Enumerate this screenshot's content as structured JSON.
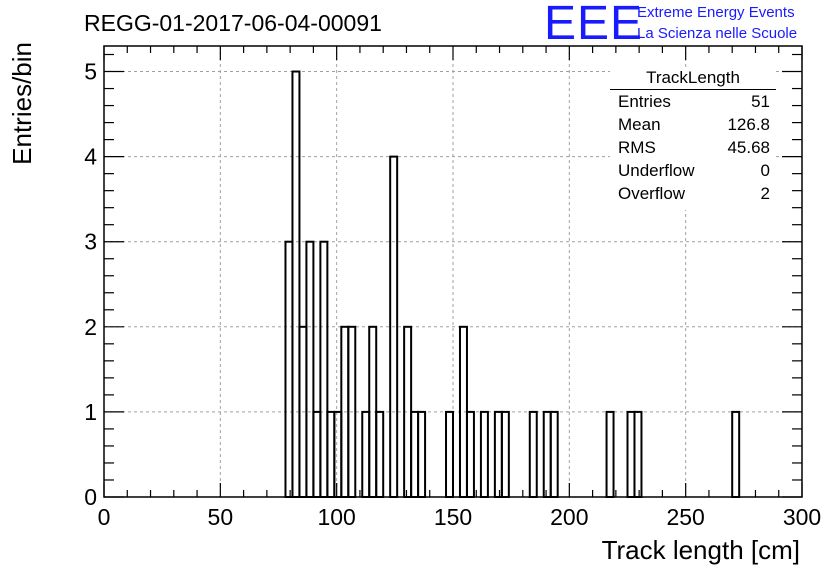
{
  "header": {
    "run_title": "REGG-01-2017-06-04-00091",
    "logo_text": "EEE",
    "logo_line1": "Extreme Energy Events",
    "logo_line2": "La Scienza nelle Scuole",
    "logo_color": "#1a1aff"
  },
  "stats": {
    "title": "TrackLength",
    "rows": [
      {
        "label": "Entries",
        "value": "51"
      },
      {
        "label": "Mean",
        "value": "126.8"
      },
      {
        "label": "RMS",
        "value": "45.68"
      },
      {
        "label": "Underflow",
        "value": "0"
      },
      {
        "label": "Overflow",
        "value": "2"
      }
    ]
  },
  "chart_data": {
    "type": "bar",
    "style": "step-histogram",
    "xlabel": "Track length [cm]",
    "ylabel": "Entries/bin",
    "xlim": [
      0,
      300
    ],
    "ylim": [
      0,
      5.3
    ],
    "bin_width": 3,
    "grid": true,
    "legend": "top-right",
    "x_ticks": [
      0,
      50,
      100,
      150,
      200,
      250,
      300
    ],
    "y_ticks": [
      0,
      1,
      2,
      3,
      4,
      5
    ],
    "bins": [
      {
        "x": 78,
        "count": 3
      },
      {
        "x": 81,
        "count": 5
      },
      {
        "x": 84,
        "count": 2
      },
      {
        "x": 87,
        "count": 3
      },
      {
        "x": 90,
        "count": 1
      },
      {
        "x": 93,
        "count": 3
      },
      {
        "x": 96,
        "count": 1
      },
      {
        "x": 99,
        "count": 1
      },
      {
        "x": 102,
        "count": 2
      },
      {
        "x": 105,
        "count": 2
      },
      {
        "x": 111,
        "count": 1
      },
      {
        "x": 114,
        "count": 2
      },
      {
        "x": 117,
        "count": 1
      },
      {
        "x": 123,
        "count": 4
      },
      {
        "x": 129,
        "count": 2
      },
      {
        "x": 132,
        "count": 1
      },
      {
        "x": 135,
        "count": 1
      },
      {
        "x": 147,
        "count": 1
      },
      {
        "x": 153,
        "count": 2
      },
      {
        "x": 156,
        "count": 1
      },
      {
        "x": 162,
        "count": 1
      },
      {
        "x": 168,
        "count": 1
      },
      {
        "x": 171,
        "count": 1
      },
      {
        "x": 183,
        "count": 1
      },
      {
        "x": 189,
        "count": 1
      },
      {
        "x": 192,
        "count": 1
      },
      {
        "x": 216,
        "count": 1
      },
      {
        "x": 225,
        "count": 1
      },
      {
        "x": 228,
        "count": 1
      },
      {
        "x": 270,
        "count": 1
      }
    ]
  }
}
